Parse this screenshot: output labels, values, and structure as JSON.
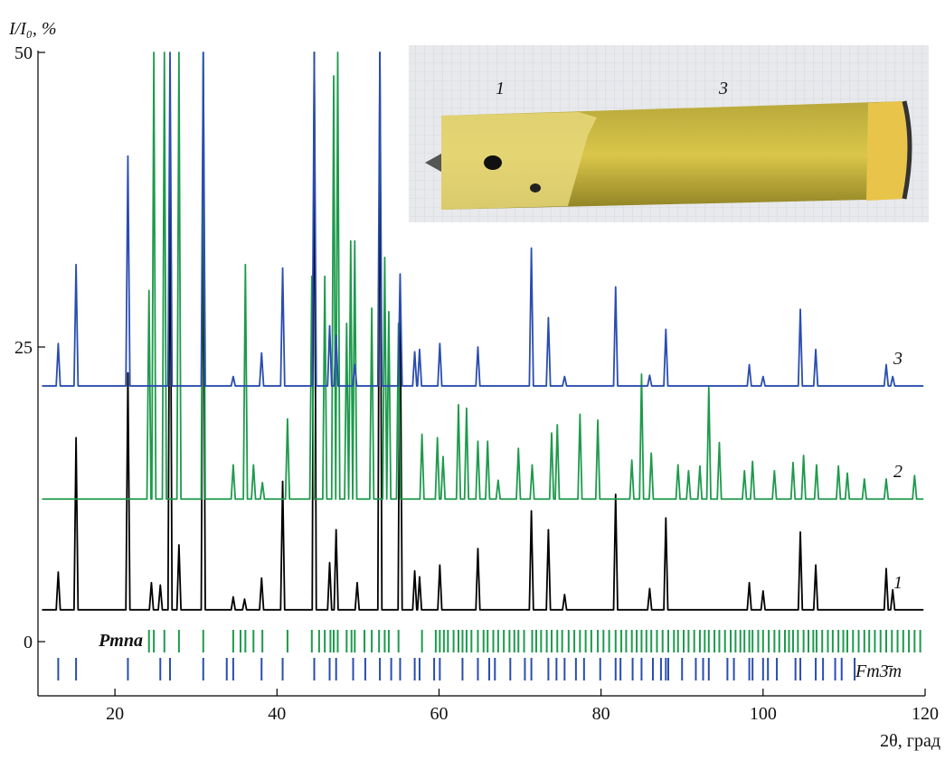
{
  "chart_data": {
    "type": "line",
    "y_label": "I/I₀, %",
    "x_label": "2θ, град",
    "xlim": [
      10.5,
      120
    ],
    "xticks": [
      20,
      40,
      60,
      80,
      100,
      120
    ],
    "ylim": [
      -4.6,
      50
    ],
    "yticks": [
      0,
      25,
      50
    ],
    "inset_labels": [
      "1",
      "3"
    ],
    "series": [
      {
        "name": "1",
        "color": "#000000",
        "x": [
          11,
          12.75,
          13,
          13.25,
          14.95,
          15.2,
          15.45,
          21.35,
          21.6,
          21.85,
          24.25,
          24.5,
          24.75,
          25.35,
          25.6,
          25.85,
          26.55,
          26.8,
          27.05,
          27.65,
          27.9,
          28.15,
          30.65,
          30.9,
          31.15,
          34.35,
          34.6,
          34.85,
          35.75,
          36,
          36.25,
          37.85,
          38.1,
          38.35,
          40.45,
          40.7,
          40.95,
          44.35,
          44.6,
          44.85,
          46.25,
          46.5,
          46.75,
          47.05,
          47.3,
          47.55,
          49.65,
          49.9,
          50.15,
          52.45,
          52.7,
          52.95,
          54.95,
          55.2,
          55.45,
          56.75,
          57,
          57.25,
          57.35,
          57.6,
          57.85,
          59.85,
          60.1,
          60.35,
          64.55,
          64.8,
          65.05,
          71.15,
          71.4,
          71.65,
          73.25,
          73.5,
          73.75,
          75.25,
          75.5,
          75.75,
          81.55,
          81.8,
          82.05,
          85.75,
          86,
          86.25,
          87.75,
          88,
          88.25,
          98.05,
          98.3,
          98.55,
          99.75,
          100,
          100.25,
          104.35,
          104.6,
          104.85,
          106.25,
          106.5,
          106.75,
          114.95,
          115.2,
          115.45,
          115.75,
          116,
          116.25,
          119.8
        ],
        "values": [
          2.7,
          2.7,
          5.9,
          2.7,
          2.7,
          17.3,
          2.7,
          2.7,
          22.8,
          2.7,
          2.7,
          5,
          2.7,
          2.7,
          4.8,
          2.7,
          2.7,
          42,
          2.7,
          2.7,
          8.2,
          2.7,
          2.7,
          40,
          2.7,
          2.7,
          3.8,
          2.7,
          2.7,
          3.6,
          2.7,
          2.7,
          5.4,
          2.7,
          2.7,
          13.6,
          2.7,
          2.7,
          50,
          2.7,
          2.7,
          6.7,
          2.7,
          2.7,
          9.5,
          2.7,
          2.7,
          5,
          2.7,
          2.7,
          50,
          2.7,
          2.7,
          30,
          2.7,
          2.7,
          6,
          2.7,
          2.7,
          5.5,
          2.7,
          2.7,
          6.5,
          2.7,
          2.7,
          7.9,
          2.7,
          2.7,
          11.1,
          2.7,
          2.7,
          9.5,
          2.7,
          2.7,
          4,
          2.7,
          2.7,
          12.5,
          2.7,
          2.7,
          4.5,
          2.7,
          2.7,
          10.5,
          2.7,
          2.7,
          5,
          2.7,
          2.7,
          4.3,
          2.7,
          2.7,
          9.3,
          2.7,
          2.7,
          6.5,
          2.7,
          2.7,
          6.2,
          2.7,
          2.7,
          4.4,
          2.7,
          2.7
        ]
      },
      {
        "name": "2",
        "color": "#1e9a4c",
        "x": [
          11,
          23.95,
          24.2,
          24.45,
          24.55,
          24.8,
          25.05,
          25.85,
          26.1,
          26.35,
          27.65,
          27.9,
          28.15,
          30.65,
          30.9,
          31.15,
          34.35,
          34.6,
          34.85,
          35.85,
          36.1,
          36.35,
          36.85,
          37.1,
          37.35,
          37.95,
          38.2,
          38.45,
          41.05,
          41.3,
          41.55,
          44.05,
          44.3,
          44.55,
          45.65,
          45.9,
          46.15,
          46.75,
          47,
          47.25,
          47.25,
          47.5,
          47.75,
          48.35,
          48.6,
          48.85,
          48.85,
          49.1,
          49.35,
          49.35,
          49.6,
          49.85,
          51.45,
          51.7,
          51.95,
          53.05,
          53.3,
          53.55,
          53.55,
          53.8,
          54.05,
          54.75,
          55,
          55.25,
          57.65,
          57.9,
          58.15,
          59.55,
          59.8,
          60.05,
          60.25,
          60.5,
          60.75,
          62.15,
          62.4,
          62.65,
          63.15,
          63.4,
          63.65,
          64.55,
          64.8,
          65.05,
          65.75,
          66,
          66.25,
          67.05,
          67.3,
          67.55,
          69.55,
          69.8,
          70.05,
          71.25,
          71.5,
          71.75,
          73.65,
          73.9,
          74.15,
          74.35,
          74.6,
          74.85,
          77.15,
          77.4,
          77.65,
          79.35,
          79.6,
          79.85,
          83.55,
          83.8,
          84.05,
          84.75,
          85,
          85.25,
          85.95,
          86.2,
          86.45,
          89.25,
          89.5,
          89.75,
          90.55,
          90.8,
          91.05,
          91.95,
          92.2,
          92.45,
          93.05,
          93.3,
          93.55,
          94.35,
          94.6,
          94.85,
          97.45,
          97.7,
          97.95,
          98.45,
          98.7,
          98.95,
          101.15,
          101.4,
          101.65,
          103.45,
          103.7,
          103.95,
          104.75,
          105,
          105.25,
          106.35,
          106.6,
          106.85,
          109.05,
          109.3,
          109.55,
          110.15,
          110.4,
          110.65,
          112.25,
          112.5,
          112.75,
          114.95,
          115.2,
          115.45,
          118.45,
          118.7,
          118.95,
          119.8
        ],
        "values": [
          12.1,
          12.1,
          29.8,
          12.1,
          12.1,
          50,
          12.1,
          12.1,
          50,
          12.1,
          12.1,
          50,
          12.1,
          12.1,
          50,
          12.1,
          12.1,
          15,
          12.1,
          12.1,
          32,
          12.1,
          12.1,
          15,
          12.1,
          12.1,
          13.5,
          12.1,
          12.1,
          18.9,
          12.1,
          12.1,
          31,
          12.1,
          12.1,
          31,
          12.1,
          12.1,
          48,
          12.1,
          12.1,
          50,
          12.1,
          12.1,
          27,
          12.1,
          12.1,
          34,
          12.1,
          12.1,
          34,
          12.1,
          12.1,
          28.3,
          12.1,
          12.1,
          32.6,
          12.1,
          12.1,
          28,
          12.1,
          12.1,
          27,
          12.1,
          12.1,
          17.6,
          12.1,
          12.1,
          17.3,
          12.1,
          12.1,
          15.7,
          12.1,
          12.1,
          20.1,
          12.1,
          12.1,
          19.8,
          12.1,
          12.1,
          17,
          12.1,
          12.1,
          17,
          12.1,
          12.1,
          13.7,
          12.1,
          12.1,
          16.4,
          12.1,
          12.1,
          15,
          12.1,
          12.1,
          17.7,
          12.1,
          12.1,
          18.4,
          12.1,
          12.1,
          19.3,
          12.1,
          12.1,
          18.8,
          12.1,
          12.1,
          15.4,
          12.1,
          12.1,
          22.7,
          12.1,
          12.1,
          16,
          12.1,
          12.1,
          15,
          12.1,
          12.1,
          14.5,
          12.1,
          12.1,
          14.9,
          12.1,
          12.1,
          21.6,
          12.1,
          12.1,
          16.9,
          12.1,
          12.1,
          14.5,
          12.1,
          12.1,
          15.3,
          12.1,
          12.1,
          14.5,
          12.1,
          12.1,
          15.2,
          12.1,
          12.1,
          15.8,
          12.1,
          12.1,
          15,
          12.1,
          12.1,
          14.9,
          12.1,
          12.1,
          14.3,
          12.1,
          12.1,
          13.8,
          12.1,
          12.1,
          13.8,
          12.1,
          12.1,
          14.1,
          12.1,
          12.1
        ]
      },
      {
        "name": "3",
        "color": "#2a4db0",
        "x": [
          11,
          12.75,
          13,
          13.25,
          14.95,
          15.2,
          15.45,
          21.35,
          21.6,
          21.85,
          26.55,
          26.8,
          27.05,
          30.65,
          30.9,
          31.15,
          34.35,
          34.6,
          34.85,
          37.85,
          38.1,
          38.35,
          40.45,
          40.7,
          40.95,
          44.35,
          44.6,
          44.85,
          46.25,
          46.5,
          46.75,
          47.05,
          47.3,
          47.55,
          49.35,
          49.6,
          49.85,
          52.45,
          52.7,
          52.95,
          54.95,
          55.2,
          55.45,
          56.75,
          57,
          57.25,
          57.35,
          57.6,
          57.85,
          59.85,
          60.1,
          60.35,
          64.55,
          64.8,
          65.05,
          71.15,
          71.4,
          71.65,
          73.25,
          73.5,
          73.75,
          75.25,
          75.5,
          75.75,
          81.55,
          81.8,
          82.05,
          85.75,
          86,
          86.25,
          87.75,
          88,
          88.25,
          98.05,
          98.3,
          98.55,
          99.75,
          100,
          100.25,
          104.35,
          104.6,
          104.85,
          106.25,
          106.5,
          106.75,
          114.95,
          115.2,
          115.45,
          115.75,
          116,
          116.25,
          119.8
        ],
        "values": [
          21.7,
          21.7,
          25.3,
          21.7,
          21.7,
          32,
          21.7,
          21.7,
          41.2,
          21.7,
          21.7,
          50,
          21.7,
          21.7,
          50,
          21.7,
          21.7,
          22.5,
          21.7,
          21.7,
          24.5,
          21.7,
          21.7,
          31.7,
          21.7,
          21.7,
          50,
          21.7,
          21.7,
          26.8,
          21.7,
          21.7,
          26,
          21.7,
          21.7,
          23.5,
          21.7,
          21.7,
          50,
          21.7,
          21.7,
          31.2,
          21.7,
          21.7,
          24.6,
          21.7,
          21.7,
          24.8,
          21.7,
          21.7,
          25.3,
          21.7,
          21.7,
          25,
          21.7,
          21.7,
          33.4,
          21.7,
          21.7,
          27.5,
          21.7,
          21.7,
          22.5,
          21.7,
          21.7,
          30.1,
          21.7,
          21.7,
          22.6,
          21.7,
          21.7,
          26.5,
          21.7,
          21.7,
          23.5,
          21.7,
          21.7,
          22.5,
          21.7,
          21.7,
          28.2,
          21.7,
          21.7,
          24.8,
          21.7,
          21.7,
          23.5,
          21.7,
          21.7,
          22.5,
          21.7,
          21.7
        ]
      }
    ],
    "reflections": [
      {
        "name": "Pmna",
        "color": "#1e9a4c",
        "x": [
          24.2,
          24.8,
          26.1,
          27.9,
          30.9,
          34.6,
          35.5,
          36.1,
          37.1,
          38.2,
          41.3,
          44.3,
          45.2,
          45.9,
          46.6,
          47,
          47.5,
          48.6,
          49.2,
          49.6,
          50.8,
          51.7,
          52.6,
          53.3,
          53.8,
          55,
          57.9,
          59.6,
          60.1,
          60.6,
          61.1,
          61.8,
          62.4,
          62.9,
          63.4,
          64,
          64.8,
          65.5,
          66,
          66.7,
          67.3,
          68,
          68.7,
          69.3,
          69.8,
          70.5,
          71.5,
          72,
          72.6,
          73.3,
          73.9,
          74.6,
          75.2,
          76,
          76.7,
          77.4,
          78.1,
          78.8,
          79.6,
          80.3,
          81,
          81.8,
          82.5,
          83.1,
          83.8,
          84.4,
          85,
          85.6,
          86.2,
          86.9,
          87.6,
          88.3,
          89,
          89.5,
          90.2,
          90.8,
          91.5,
          92.2,
          92.8,
          93.3,
          94,
          94.6,
          95.3,
          96,
          96.6,
          97.2,
          97.7,
          98.3,
          98.7,
          99.4,
          100,
          100.7,
          101.4,
          102,
          102.7,
          103.2,
          103.7,
          104.3,
          105,
          105.6,
          106.2,
          106.6,
          107.3,
          108,
          108.6,
          109.3,
          109.9,
          110.4,
          111.1,
          111.8,
          112.5,
          113.1,
          113.8,
          114.5,
          115.2,
          115.9,
          116.6,
          117.3,
          118,
          118.7,
          119.4
        ]
      },
      {
        "name": "Fm3̄m",
        "color": "#2a4db0",
        "x": [
          13,
          15.2,
          21.6,
          25.6,
          26.8,
          30.9,
          33.8,
          34.6,
          38.1,
          40.7,
          44.6,
          46.5,
          47.3,
          49.4,
          50.9,
          52.7,
          54.1,
          55.2,
          57,
          57.6,
          59.4,
          60.1,
          62.9,
          64.8,
          66.2,
          66.9,
          68.8,
          70.6,
          71.4,
          73.5,
          74.5,
          75.5,
          76.9,
          77.9,
          79.9,
          81.8,
          82.4,
          83.9,
          85,
          86.4,
          87.4,
          88,
          88.3,
          90,
          91.7,
          92.6,
          93.3,
          95.6,
          96.4,
          98.3,
          98.7,
          100,
          100.6,
          101.7,
          104,
          104.6,
          106.5,
          107.4,
          108.9,
          109.7,
          111.3
        ]
      }
    ]
  }
}
